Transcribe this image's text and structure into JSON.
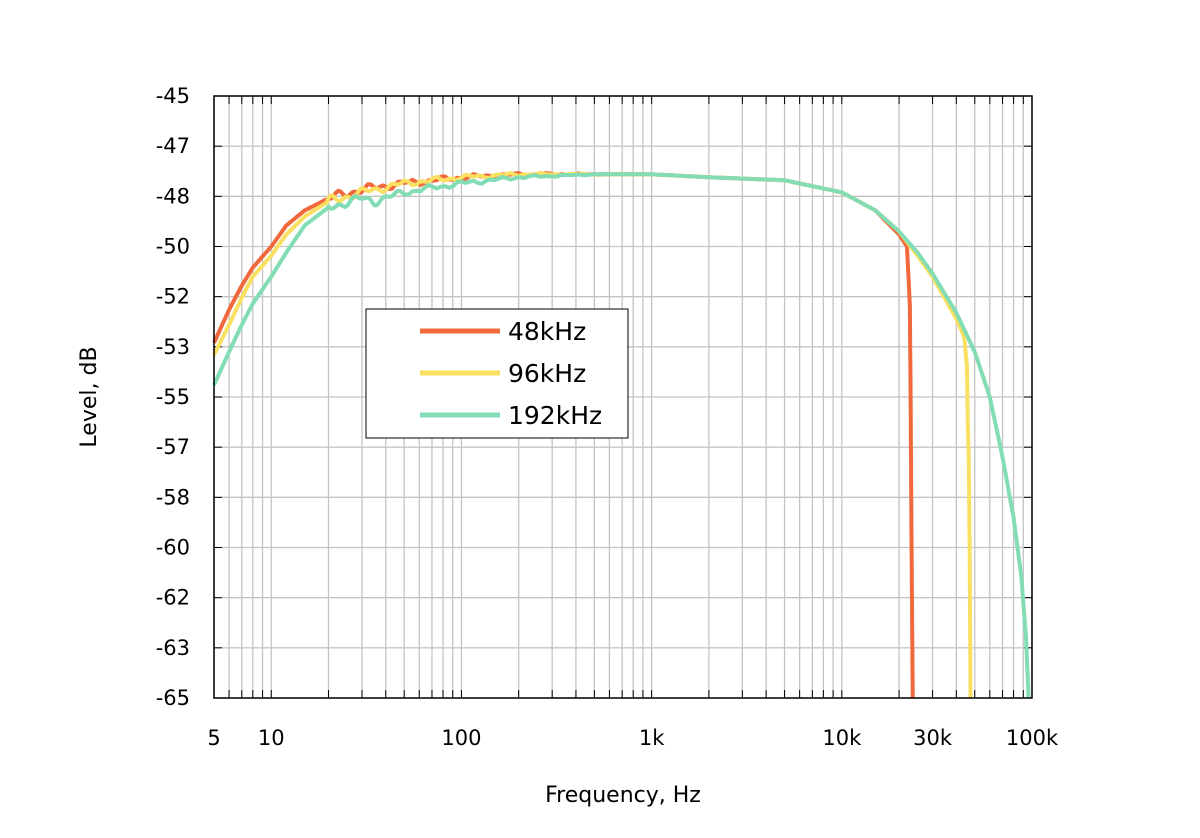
{
  "chart_data": {
    "type": "line",
    "xlabel": "Frequency, Hz",
    "ylabel": "Level, dB",
    "x_scale": "log",
    "xlim": [
      5,
      100000
    ],
    "ylim": [
      -65,
      -45
    ],
    "grid": true,
    "legend_position": "center-left",
    "x_ticks": [
      {
        "value": 5,
        "label": "5"
      },
      {
        "value": 10,
        "label": "10"
      },
      {
        "value": 100,
        "label": "100"
      },
      {
        "value": 1000,
        "label": "1k"
      },
      {
        "value": 10000,
        "label": "10k"
      },
      {
        "value": 30000,
        "label": "30k"
      },
      {
        "value": 100000,
        "label": "100k"
      }
    ],
    "y_ticks": [
      {
        "value": -45,
        "label": "-45"
      },
      {
        "value": -46.667,
        "label": "-47"
      },
      {
        "value": -48.333,
        "label": "-48"
      },
      {
        "value": -50,
        "label": "-50"
      },
      {
        "value": -51.667,
        "label": "-52"
      },
      {
        "value": -53.333,
        "label": "-53"
      },
      {
        "value": -55,
        "label": "-55"
      },
      {
        "value": -56.667,
        "label": "-57"
      },
      {
        "value": -58.333,
        "label": "-58"
      },
      {
        "value": -60,
        "label": "-60"
      },
      {
        "value": -61.667,
        "label": "-62"
      },
      {
        "value": -63.333,
        "label": "-63"
      },
      {
        "value": -65,
        "label": "-65"
      }
    ],
    "series": [
      {
        "name": "48kHz",
        "color": "#f0683c",
        "points": [
          [
            5,
            -53.2
          ],
          [
            6,
            -52.1
          ],
          [
            7,
            -51.3
          ],
          [
            8,
            -50.7
          ],
          [
            10,
            -50.0
          ],
          [
            12,
            -49.3
          ],
          [
            15,
            -48.8
          ],
          [
            20,
            -48.4
          ],
          [
            30,
            -48.1
          ],
          [
            50,
            -47.9
          ],
          [
            100,
            -47.7
          ],
          [
            200,
            -47.6
          ],
          [
            500,
            -47.6
          ],
          [
            1000,
            -47.6
          ],
          [
            2000,
            -47.7
          ],
          [
            5000,
            -47.8
          ],
          [
            10000,
            -48.2
          ],
          [
            15000,
            -48.8
          ],
          [
            20000,
            -49.6
          ],
          [
            22000,
            -50.0
          ],
          [
            22500,
            -51.2
          ],
          [
            22800,
            -52.0
          ],
          [
            23000,
            -55.0
          ],
          [
            23300,
            -60.5
          ],
          [
            23600,
            -65.0
          ]
        ]
      },
      {
        "name": "96kHz",
        "color": "#f9e060",
        "points": [
          [
            5,
            -53.6
          ],
          [
            6,
            -52.6
          ],
          [
            7,
            -51.7
          ],
          [
            8,
            -51.0
          ],
          [
            10,
            -50.3
          ],
          [
            12,
            -49.6
          ],
          [
            15,
            -49.0
          ],
          [
            20,
            -48.5
          ],
          [
            30,
            -48.2
          ],
          [
            50,
            -47.9
          ],
          [
            100,
            -47.7
          ],
          [
            200,
            -47.6
          ],
          [
            500,
            -47.6
          ],
          [
            1000,
            -47.6
          ],
          [
            2000,
            -47.7
          ],
          [
            5000,
            -47.8
          ],
          [
            10000,
            -48.2
          ],
          [
            15000,
            -48.8
          ],
          [
            20000,
            -49.5
          ],
          [
            25000,
            -50.3
          ],
          [
            30000,
            -51.0
          ],
          [
            40000,
            -52.4
          ],
          [
            44000,
            -53.0
          ],
          [
            45500,
            -54.0
          ],
          [
            46000,
            -56.0
          ],
          [
            46500,
            -57.0
          ],
          [
            47000,
            -60.0
          ],
          [
            47500,
            -65.0
          ]
        ]
      },
      {
        "name": "192kHz",
        "color": "#82dcb4",
        "points": [
          [
            5,
            -54.6
          ],
          [
            6,
            -53.5
          ],
          [
            7,
            -52.6
          ],
          [
            8,
            -51.9
          ],
          [
            10,
            -51.0
          ],
          [
            12,
            -50.2
          ],
          [
            15,
            -49.3
          ],
          [
            20,
            -48.7
          ],
          [
            30,
            -48.4
          ],
          [
            35,
            -48.5
          ],
          [
            50,
            -48.2
          ],
          [
            100,
            -47.9
          ],
          [
            200,
            -47.7
          ],
          [
            500,
            -47.6
          ],
          [
            1000,
            -47.6
          ],
          [
            2000,
            -47.7
          ],
          [
            5000,
            -47.8
          ],
          [
            10000,
            -48.2
          ],
          [
            15000,
            -48.8
          ],
          [
            20000,
            -49.5
          ],
          [
            25000,
            -50.2
          ],
          [
            30000,
            -50.9
          ],
          [
            40000,
            -52.2
          ],
          [
            50000,
            -53.5
          ],
          [
            60000,
            -55.0
          ],
          [
            70000,
            -57.0
          ],
          [
            80000,
            -59.0
          ],
          [
            88000,
            -61.0
          ],
          [
            93000,
            -63.0
          ],
          [
            96000,
            -65.0
          ]
        ]
      }
    ]
  }
}
